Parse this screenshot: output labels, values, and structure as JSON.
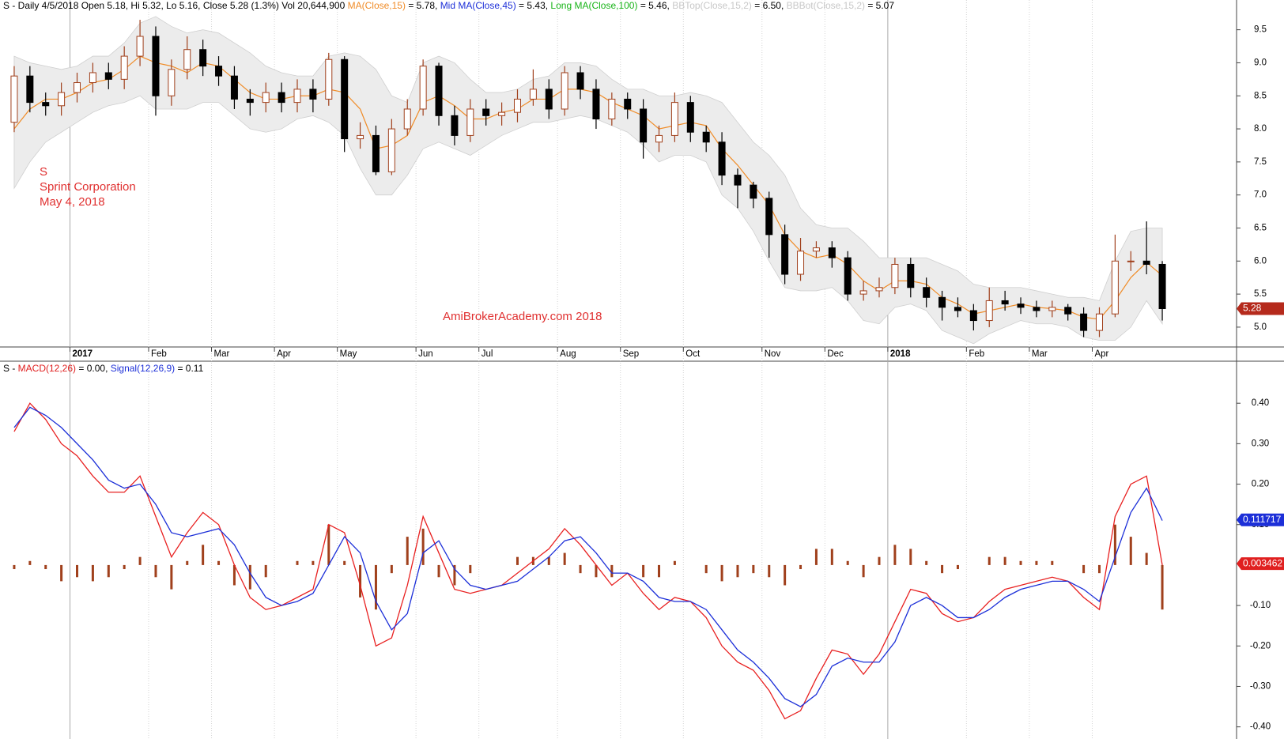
{
  "chart_data": [
    {
      "type": "candlestick",
      "header": [
        {
          "text": "S - Daily 4/5/2018 Open 5.18, Hi 5.32, Lo 5.16, Close 5.28 (1.3%) Vol 20,644,900 ",
          "color": "#000000"
        },
        {
          "text": "MA(Close,15)",
          "color": "#f08c28"
        },
        {
          "text": " = 5.78, ",
          "color": "#000000"
        },
        {
          "text": "Mid MA(Close,45)",
          "color": "#1c2fd8"
        },
        {
          "text": " = 5.43, ",
          "color": "#000000"
        },
        {
          "text": "Long MA(Close,100)",
          "color": "#18b418"
        },
        {
          "text": " = 5.46, ",
          "color": "#000000"
        },
        {
          "text": "BBTop(Close,15,2)",
          "color": "#c8c8c8"
        },
        {
          "text": " = 6.50, ",
          "color": "#000000"
        },
        {
          "text": "BBBot(Close,15,2)",
          "color": "#c8c8c8"
        },
        {
          "text": " = 5.07",
          "color": "#000000"
        }
      ],
      "annotations": [
        "S",
        "Sprint Corporation",
        "May 4, 2018"
      ],
      "watermark": "AmiBrokerAcademy.com  2018",
      "categories": [
        null,
        null,
        null,
        null,
        "2017",
        null,
        null,
        null,
        null,
        "Feb",
        null,
        null,
        null,
        "Mar",
        null,
        null,
        null,
        "Apr",
        null,
        null,
        null,
        "May",
        null,
        null,
        null,
        null,
        "Jun",
        null,
        null,
        null,
        "Jul",
        null,
        null,
        null,
        null,
        "Aug",
        null,
        null,
        null,
        "Sep",
        null,
        null,
        null,
        "Oct",
        null,
        null,
        null,
        null,
        "Nov",
        null,
        null,
        null,
        "Dec",
        null,
        null,
        null,
        "2018",
        null,
        null,
        null,
        null,
        "Feb",
        null,
        null,
        null,
        "Mar",
        null,
        null,
        null,
        "Apr",
        null,
        null,
        null,
        null
      ],
      "open": [
        8.1,
        8.8,
        8.4,
        8.35,
        8.55,
        8.7,
        8.85,
        8.75,
        9.1,
        9.4,
        8.5,
        8.9,
        9.2,
        8.95,
        8.8,
        8.45,
        8.4,
        8.55,
        8.4,
        8.6,
        8.45,
        9.05,
        7.85,
        7.9,
        7.35,
        8.0,
        8.3,
        8.95,
        8.2,
        7.9,
        8.3,
        8.2,
        8.25,
        8.45,
        8.6,
        8.3,
        8.85,
        8.6,
        8.15,
        8.45,
        8.3,
        7.8,
        7.9,
        8.4,
        7.95,
        7.8,
        7.3,
        7.15,
        6.95,
        6.4,
        5.8,
        6.15,
        6.2,
        6.05,
        5.5,
        5.55,
        5.6,
        5.95,
        5.6,
        5.45,
        5.3,
        5.25,
        5.1,
        5.4,
        5.35,
        5.3,
        5.25,
        5.3,
        5.2,
        4.95,
        5.2,
        6.0,
        6.0,
        5.95
      ],
      "high": [
        8.95,
        8.95,
        8.55,
        8.7,
        8.85,
        9.0,
        9.0,
        9.25,
        9.65,
        9.55,
        9.05,
        9.4,
        9.35,
        9.1,
        8.95,
        8.6,
        8.7,
        8.7,
        8.75,
        8.75,
        9.15,
        9.1,
        8.1,
        8.05,
        8.15,
        8.45,
        9.05,
        9.0,
        8.35,
        8.45,
        8.45,
        8.4,
        8.6,
        8.9,
        8.75,
        8.95,
        8.95,
        8.75,
        8.55,
        8.55,
        8.45,
        8.05,
        8.55,
        8.5,
        8.05,
        7.95,
        7.4,
        7.2,
        7.05,
        6.55,
        6.35,
        6.3,
        6.3,
        6.15,
        5.7,
        5.75,
        6.05,
        6.05,
        5.75,
        5.55,
        5.45,
        5.35,
        5.6,
        5.55,
        5.45,
        5.4,
        5.4,
        5.35,
        5.3,
        5.3,
        6.4,
        6.15,
        6.6,
        6.0
      ],
      "low": [
        7.95,
        8.25,
        8.2,
        8.2,
        8.4,
        8.55,
        8.6,
        8.6,
        8.95,
        8.2,
        8.35,
        8.75,
        8.8,
        8.65,
        8.3,
        8.2,
        8.25,
        8.25,
        8.25,
        8.25,
        8.35,
        7.65,
        7.7,
        7.3,
        7.3,
        7.9,
        8.2,
        8.05,
        7.75,
        7.8,
        8.05,
        8.05,
        8.1,
        8.35,
        8.15,
        8.2,
        8.45,
        8.0,
        8.05,
        8.15,
        7.55,
        7.65,
        7.8,
        7.8,
        7.65,
        7.15,
        6.8,
        6.8,
        6.05,
        5.65,
        5.7,
        6.05,
        5.9,
        5.4,
        5.4,
        5.45,
        5.5,
        5.45,
        5.3,
        5.1,
        5.15,
        4.95,
        5.0,
        5.25,
        5.2,
        5.15,
        5.15,
        5.1,
        4.85,
        4.85,
        5.15,
        5.85,
        5.8,
        5.1
      ],
      "close": [
        8.8,
        8.4,
        8.35,
        8.55,
        8.7,
        8.85,
        8.75,
        9.1,
        9.4,
        8.5,
        8.9,
        9.2,
        8.95,
        8.8,
        8.45,
        8.4,
        8.55,
        8.4,
        8.6,
        8.45,
        9.05,
        7.85,
        7.9,
        7.35,
        8.0,
        8.3,
        8.95,
        8.2,
        7.9,
        8.3,
        8.2,
        8.25,
        8.45,
        8.6,
        8.3,
        8.85,
        8.6,
        8.15,
        8.45,
        8.3,
        7.8,
        7.9,
        8.4,
        7.95,
        7.8,
        7.3,
        7.15,
        6.95,
        6.4,
        5.8,
        6.15,
        6.2,
        6.05,
        5.5,
        5.55,
        5.6,
        5.95,
        5.6,
        5.45,
        5.3,
        5.25,
        5.1,
        5.4,
        5.35,
        5.3,
        5.25,
        5.3,
        5.2,
        4.95,
        5.2,
        6.0,
        6.0,
        5.95,
        5.28
      ],
      "up_color": "#ffffff",
      "up_outline": "#a0401c",
      "down_color": "#000000",
      "ma": {
        "color": "#f08c28",
        "values": [
          8.0,
          8.3,
          8.45,
          8.45,
          8.55,
          8.7,
          8.75,
          8.9,
          9.1,
          9.0,
          8.95,
          8.85,
          9.0,
          8.95,
          8.75,
          8.55,
          8.45,
          8.45,
          8.5,
          8.5,
          8.6,
          8.55,
          8.3,
          7.7,
          7.75,
          7.9,
          8.4,
          8.5,
          8.35,
          8.15,
          8.15,
          8.25,
          8.3,
          8.45,
          8.45,
          8.6,
          8.6,
          8.55,
          8.4,
          8.3,
          8.2,
          8.0,
          8.05,
          8.1,
          8.05,
          7.7,
          7.45,
          7.15,
          6.85,
          6.4,
          6.15,
          6.05,
          6.1,
          5.95,
          5.7,
          5.55,
          5.7,
          5.7,
          5.65,
          5.45,
          5.35,
          5.2,
          5.25,
          5.3,
          5.35,
          5.3,
          5.28,
          5.25,
          5.15,
          5.12,
          5.4,
          5.75,
          5.98,
          5.78
        ]
      },
      "band": {
        "color": "#ececec",
        "outline": "#cfcfcf",
        "upper": [
          9.1,
          9.0,
          8.95,
          8.9,
          8.95,
          9.1,
          9.1,
          9.3,
          9.6,
          9.7,
          9.55,
          9.45,
          9.5,
          9.45,
          9.3,
          9.15,
          8.95,
          8.85,
          8.8,
          8.8,
          9.1,
          9.15,
          9.1,
          8.9,
          8.5,
          8.4,
          9.0,
          9.1,
          9.0,
          8.75,
          8.55,
          8.55,
          8.6,
          8.75,
          8.8,
          9.0,
          9.0,
          8.95,
          8.75,
          8.6,
          8.6,
          8.5,
          8.5,
          8.55,
          8.5,
          8.4,
          8.1,
          7.8,
          7.6,
          7.3,
          6.8,
          6.55,
          6.5,
          6.5,
          6.3,
          6.05,
          6.05,
          6.05,
          6.05,
          5.95,
          5.85,
          5.65,
          5.6,
          5.6,
          5.6,
          5.55,
          5.5,
          5.45,
          5.45,
          5.4,
          6.0,
          6.45,
          6.5,
          6.5
        ],
        "lower": [
          7.1,
          7.5,
          7.8,
          7.95,
          8.1,
          8.25,
          8.35,
          8.4,
          8.5,
          8.3,
          8.3,
          8.3,
          8.4,
          8.4,
          8.2,
          8.0,
          7.95,
          8.0,
          8.15,
          8.2,
          8.1,
          7.9,
          7.4,
          7.0,
          7.0,
          7.3,
          7.7,
          7.8,
          7.7,
          7.6,
          7.75,
          7.9,
          8.0,
          8.1,
          8.1,
          8.15,
          8.2,
          8.15,
          8.05,
          7.95,
          7.75,
          7.5,
          7.6,
          7.6,
          7.5,
          7.0,
          6.8,
          6.45,
          6.0,
          5.6,
          5.55,
          5.55,
          5.6,
          5.4,
          5.1,
          5.05,
          5.3,
          5.35,
          5.25,
          4.95,
          4.85,
          4.75,
          4.9,
          5.0,
          5.1,
          5.05,
          5.05,
          5.0,
          4.85,
          4.8,
          4.8,
          5.0,
          5.4,
          5.05
        ]
      },
      "ylim": [
        4.7,
        9.95
      ],
      "yticks": [
        {
          "value": 5.0,
          "label": "5.0"
        },
        {
          "value": 5.5,
          "label": "5.5"
        },
        {
          "value": 6.0,
          "label": "6.0"
        },
        {
          "value": 6.5,
          "label": "6.5"
        },
        {
          "value": 7.0,
          "label": "7.0"
        },
        {
          "value": 7.5,
          "label": "7.5"
        },
        {
          "value": 8.0,
          "label": "8.0"
        },
        {
          "value": 8.5,
          "label": "8.5"
        },
        {
          "value": 9.0,
          "label": "9.0"
        },
        {
          "value": 9.5,
          "label": "9.5"
        }
      ],
      "tags": [
        {
          "value": 5.28,
          "color": "#b52a1c"
        }
      ]
    },
    {
      "type": "line",
      "header": [
        {
          "text": "S - ",
          "color": "#000000"
        },
        {
          "text": "MACD(12,26)",
          "color": "#e02020"
        },
        {
          "text": " = 0.00, ",
          "color": "#000000"
        },
        {
          "text": "Signal(12,26,9)",
          "color": "#1c2fd8"
        },
        {
          "text": " = 0.11",
          "color": "#000000"
        }
      ],
      "series": [
        {
          "name": "MACD(12,26)",
          "color": "#e82020",
          "values": [
            0.33,
            0.4,
            0.36,
            0.3,
            0.27,
            0.22,
            0.18,
            0.18,
            0.22,
            0.12,
            0.02,
            0.08,
            0.13,
            0.1,
            0.0,
            -0.08,
            -0.11,
            -0.1,
            -0.08,
            -0.06,
            0.1,
            0.08,
            -0.05,
            -0.2,
            -0.18,
            -0.05,
            0.12,
            0.03,
            -0.06,
            -0.07,
            -0.06,
            -0.05,
            -0.02,
            0.01,
            0.04,
            0.09,
            0.05,
            0.0,
            -0.05,
            -0.02,
            -0.07,
            -0.11,
            -0.08,
            -0.09,
            -0.13,
            -0.2,
            -0.24,
            -0.26,
            -0.31,
            -0.38,
            -0.36,
            -0.28,
            -0.21,
            -0.22,
            -0.27,
            -0.22,
            -0.14,
            -0.06,
            -0.07,
            -0.12,
            -0.14,
            -0.13,
            -0.09,
            -0.06,
            -0.05,
            -0.04,
            -0.03,
            -0.04,
            -0.08,
            -0.11,
            0.12,
            0.2,
            0.22,
            0.0
          ]
        },
        {
          "name": "Signal(12,26,9)",
          "color": "#1c2fd8",
          "values": [
            0.34,
            0.39,
            0.37,
            0.34,
            0.3,
            0.26,
            0.21,
            0.19,
            0.2,
            0.15,
            0.08,
            0.07,
            0.08,
            0.09,
            0.05,
            -0.02,
            -0.08,
            -0.1,
            -0.09,
            -0.07,
            0.0,
            0.07,
            0.03,
            -0.09,
            -0.16,
            -0.12,
            0.03,
            0.06,
            -0.01,
            -0.05,
            -0.06,
            -0.05,
            -0.04,
            -0.01,
            0.02,
            0.06,
            0.07,
            0.03,
            -0.02,
            -0.02,
            -0.04,
            -0.08,
            -0.09,
            -0.09,
            -0.11,
            -0.16,
            -0.21,
            -0.24,
            -0.28,
            -0.33,
            -0.35,
            -0.32,
            -0.25,
            -0.23,
            -0.24,
            -0.24,
            -0.19,
            -0.1,
            -0.08,
            -0.1,
            -0.13,
            -0.13,
            -0.11,
            -0.08,
            -0.06,
            -0.05,
            -0.04,
            -0.04,
            -0.06,
            -0.09,
            0.02,
            0.13,
            0.19,
            0.11
          ]
        }
      ],
      "bars": {
        "color": "#a0401c",
        "values": [
          -0.01,
          0.01,
          -0.01,
          -0.04,
          -0.03,
          -0.04,
          -0.03,
          -0.01,
          0.02,
          -0.03,
          -0.06,
          0.01,
          0.05,
          0.01,
          -0.05,
          -0.06,
          -0.03,
          0.0,
          0.01,
          0.01,
          0.1,
          0.01,
          -0.08,
          -0.11,
          -0.02,
          0.07,
          0.09,
          -0.03,
          -0.05,
          -0.02,
          0.0,
          0.0,
          0.02,
          0.02,
          0.02,
          0.03,
          -0.02,
          -0.03,
          -0.03,
          0.0,
          -0.03,
          -0.03,
          0.01,
          0.0,
          -0.02,
          -0.04,
          -0.03,
          -0.02,
          -0.03,
          -0.05,
          -0.01,
          0.04,
          0.04,
          0.01,
          -0.03,
          0.02,
          0.05,
          0.04,
          0.01,
          -0.02,
          -0.01,
          0.0,
          0.02,
          0.02,
          0.01,
          0.01,
          0.01,
          0.0,
          -0.02,
          -0.02,
          0.1,
          0.07,
          0.03,
          -0.11
        ]
      },
      "ylim": [
        -0.43,
        0.5
      ],
      "yticks": [
        {
          "value": -0.4,
          "label": "-0.40"
        },
        {
          "value": -0.3,
          "label": "-0.30"
        },
        {
          "value": -0.2,
          "label": "-0.20"
        },
        {
          "value": -0.1,
          "label": "-0.10"
        },
        {
          "value": 0.1,
          "label": "0.10"
        },
        {
          "value": 0.2,
          "label": "0.20"
        },
        {
          "value": 0.3,
          "label": "0.30"
        },
        {
          "value": 0.4,
          "label": "0.40"
        }
      ],
      "tags": [
        {
          "value": 0.111717,
          "color": "#1c2fd8"
        },
        {
          "value": 0.003462,
          "color": "#e02020"
        }
      ]
    }
  ]
}
